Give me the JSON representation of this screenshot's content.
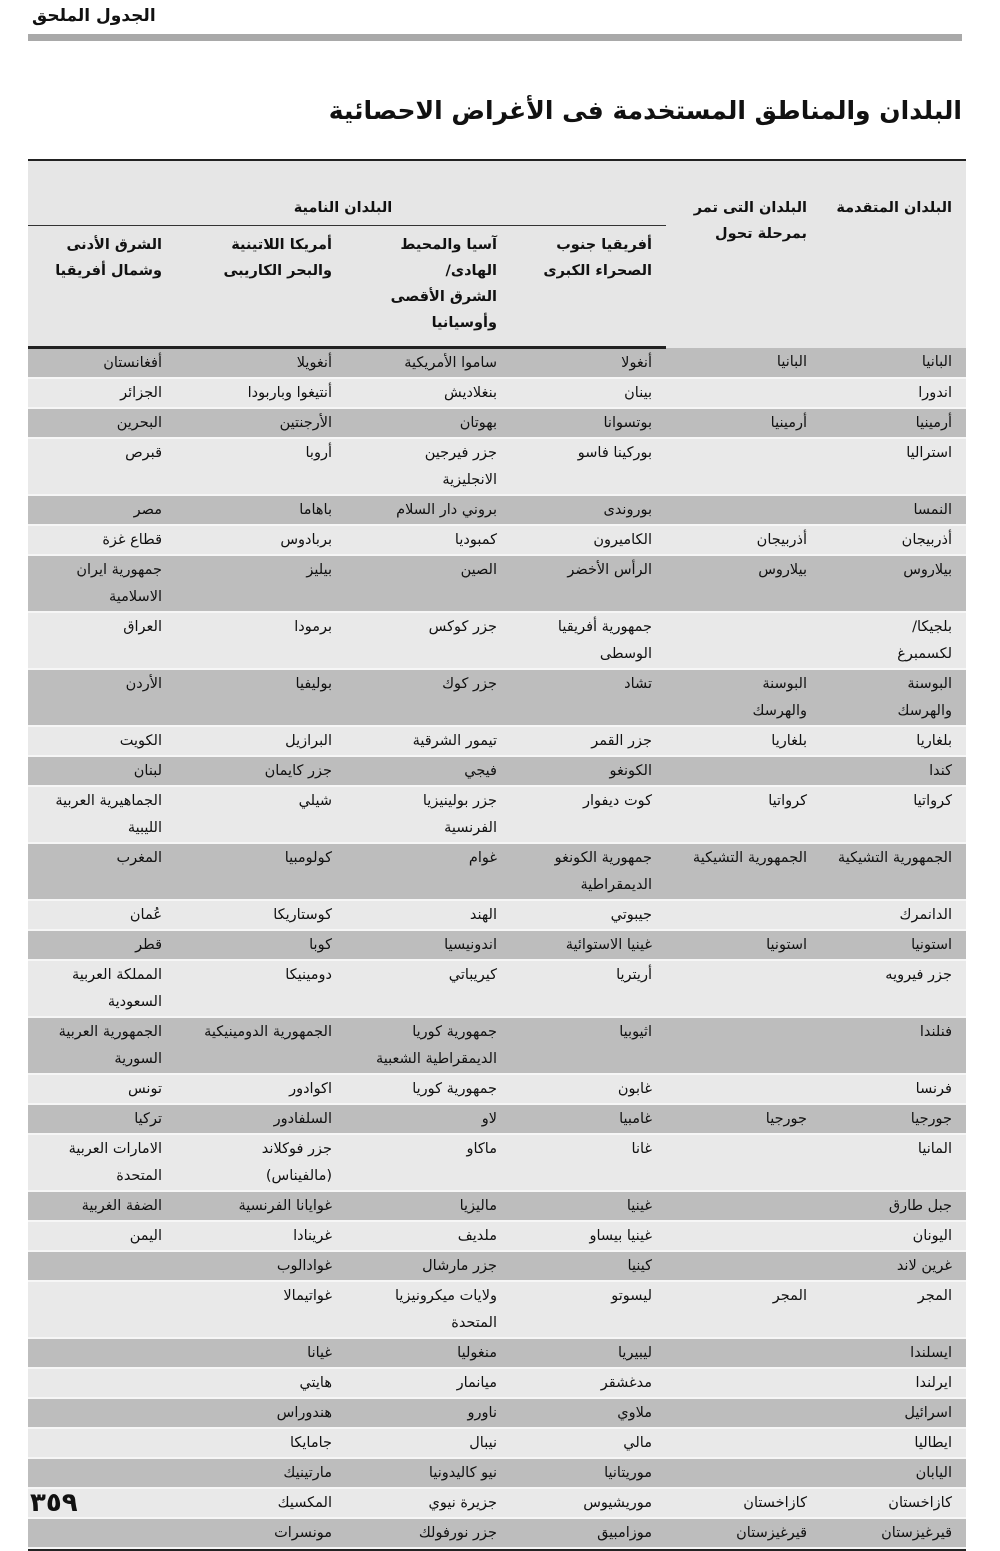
{
  "running_header": "الجدول الملحق",
  "title": "البلدان والمناطق المستخدمة فى الأغراض الاحصائية",
  "table": {
    "headers": {
      "developed": "البلدان المتقدمة",
      "transition": "البلدان التى تمر\nبمرحلة تحول",
      "developing_group": "البلدان النامية",
      "ssa": "أفريقيا جنوب\nالصحراء الكبرى",
      "asia": "آسيا والمحيط الهادى/\nالشرق الأقصى\nوأوسيانيا",
      "latam": "أمريكا اللاتينية\nوالبحر الكاريبى",
      "mena": "الشرق الأدنى\nوشمال أفريقيا"
    },
    "rows": [
      [
        "البانيا",
        "البانيا",
        "أنغولا",
        "ساموا الأمريكية",
        "أنغويلا",
        "أفغانستان"
      ],
      [
        "اندورا",
        "",
        "بينان",
        "بنغلاديش",
        "أنتيغوا وباربودا",
        "الجزائر"
      ],
      [
        "أرمينيا",
        "أرمينيا",
        "بوتسوانا",
        "بهوتان",
        "الأرجنتين",
        "البحرين"
      ],
      [
        "استراليا",
        "",
        "بوركينا فاسو",
        "جزر فيرجين\nالانجليزية",
        "أروبا",
        "قبرص"
      ],
      [
        "النمسا",
        "",
        "بوروندى",
        "بروني دار السلام",
        "باهاما",
        "مصر"
      ],
      [
        "أذربيجان",
        "أذربيجان",
        "الكاميرون",
        "كمبوديا",
        "بربادوس",
        "قطاع غزة"
      ],
      [
        "بيلاروس",
        "بيلاروس",
        "الرأس الأخضر",
        "الصين",
        "بيليز",
        "جمهورية ايران\nالاسلامية"
      ],
      [
        "بلجيكا/\nلكسمبرغ",
        "",
        "جمهورية أفريقيا\nالوسطى",
        "جزر كوكس",
        "برمودا",
        "العراق"
      ],
      [
        "البوسنة\nوالهرسك",
        "البوسنة\nوالهرسك",
        "تشاد",
        "جزر كوك",
        "بوليفيا",
        "الأردن"
      ],
      [
        "بلغاريا",
        "بلغاريا",
        "جزر القمر",
        "تيمور الشرقية",
        "البرازيل",
        "الكويت"
      ],
      [
        "كندا",
        "",
        "الكونغو",
        "فيجي",
        "جزر كايمان",
        "لبنان"
      ],
      [
        "كرواتيا",
        "كرواتيا",
        "كوت ديفوار",
        "جزر بولينيزيا\nالفرنسية",
        "شيلي",
        "الجماهيرية العربية\nالليبية"
      ],
      [
        "الجمهورية التشيكية",
        "الجمهورية التشيكية",
        "جمهورية الكونغو\nالديمقراطية",
        "غوام",
        "كولومبيا",
        "المغرب"
      ],
      [
        "الدانمرك",
        "",
        "جيبوتي",
        "الهند",
        "كوستاريكا",
        "عُمان"
      ],
      [
        "استونيا",
        "استونيا",
        "غينيا الاستوائية",
        "اندونيسيا",
        "كوبا",
        "قطر"
      ],
      [
        "جزر فيرويه",
        "",
        "أريتريا",
        "كيريباتي",
        "دومينيكا",
        "المملكة العربية\nالسعودية"
      ],
      [
        "فنلندا",
        "",
        "اثيوبيا",
        "جمهورية كوريا\nالديمقراطية الشعبية",
        "الجمهورية الدومينيكية",
        "الجمهورية العربية\nالسورية"
      ],
      [
        "فرنسا",
        "",
        "غابون",
        "جمهورية كوريا",
        "اكوادور",
        "تونس"
      ],
      [
        "جورجيا",
        "جورجيا",
        "غامبيا",
        "لاو",
        "السلفادور",
        "تركيا"
      ],
      [
        "المانيا",
        "",
        "غانا",
        "ماكاو",
        "جزر فوكلاند\n(مالفيناس)",
        "الامارات العربية\nالمتحدة"
      ],
      [
        "جبل طارق",
        "",
        "غينيا",
        "ماليزيا",
        "غوايانا الفرنسية",
        "الضفة الغربية"
      ],
      [
        "اليونان",
        "",
        "غينيا بيساو",
        "ملديف",
        "غرينادا",
        "اليمن"
      ],
      [
        "غرين لاند",
        "",
        "كينيا",
        "جزر مارشال",
        "غوادالوب",
        ""
      ],
      [
        "المجر",
        "المجر",
        "ليسوتو",
        "ولايات ميكرونيزيا\nالمتحدة",
        "غواتيمالا",
        ""
      ],
      [
        "ايسلندا",
        "",
        "ليبيريا",
        "منغوليا",
        "غيانا",
        ""
      ],
      [
        "ايرلندا",
        "",
        "مدغشقر",
        "ميانمار",
        "هايتي",
        ""
      ],
      [
        "اسرائيل",
        "",
        "ملاوي",
        "ناورو",
        "هندوراس",
        ""
      ],
      [
        "ايطاليا",
        "",
        "مالي",
        "نيبال",
        "جامايكا",
        ""
      ],
      [
        "اليابان",
        "",
        "موريتانيا",
        "نيو كاليدونيا",
        "مارتينيك",
        ""
      ],
      [
        "كازاخستان",
        "كازاخستان",
        "موريشيوس",
        "جزيرة نيوي",
        "المكسيك",
        ""
      ],
      [
        "قيرغيزستان",
        "قيرغيزستان",
        "موزامبيق",
        "جزر نورفولك",
        "مونسرات",
        ""
      ]
    ]
  },
  "page_number": "٣٥٩"
}
